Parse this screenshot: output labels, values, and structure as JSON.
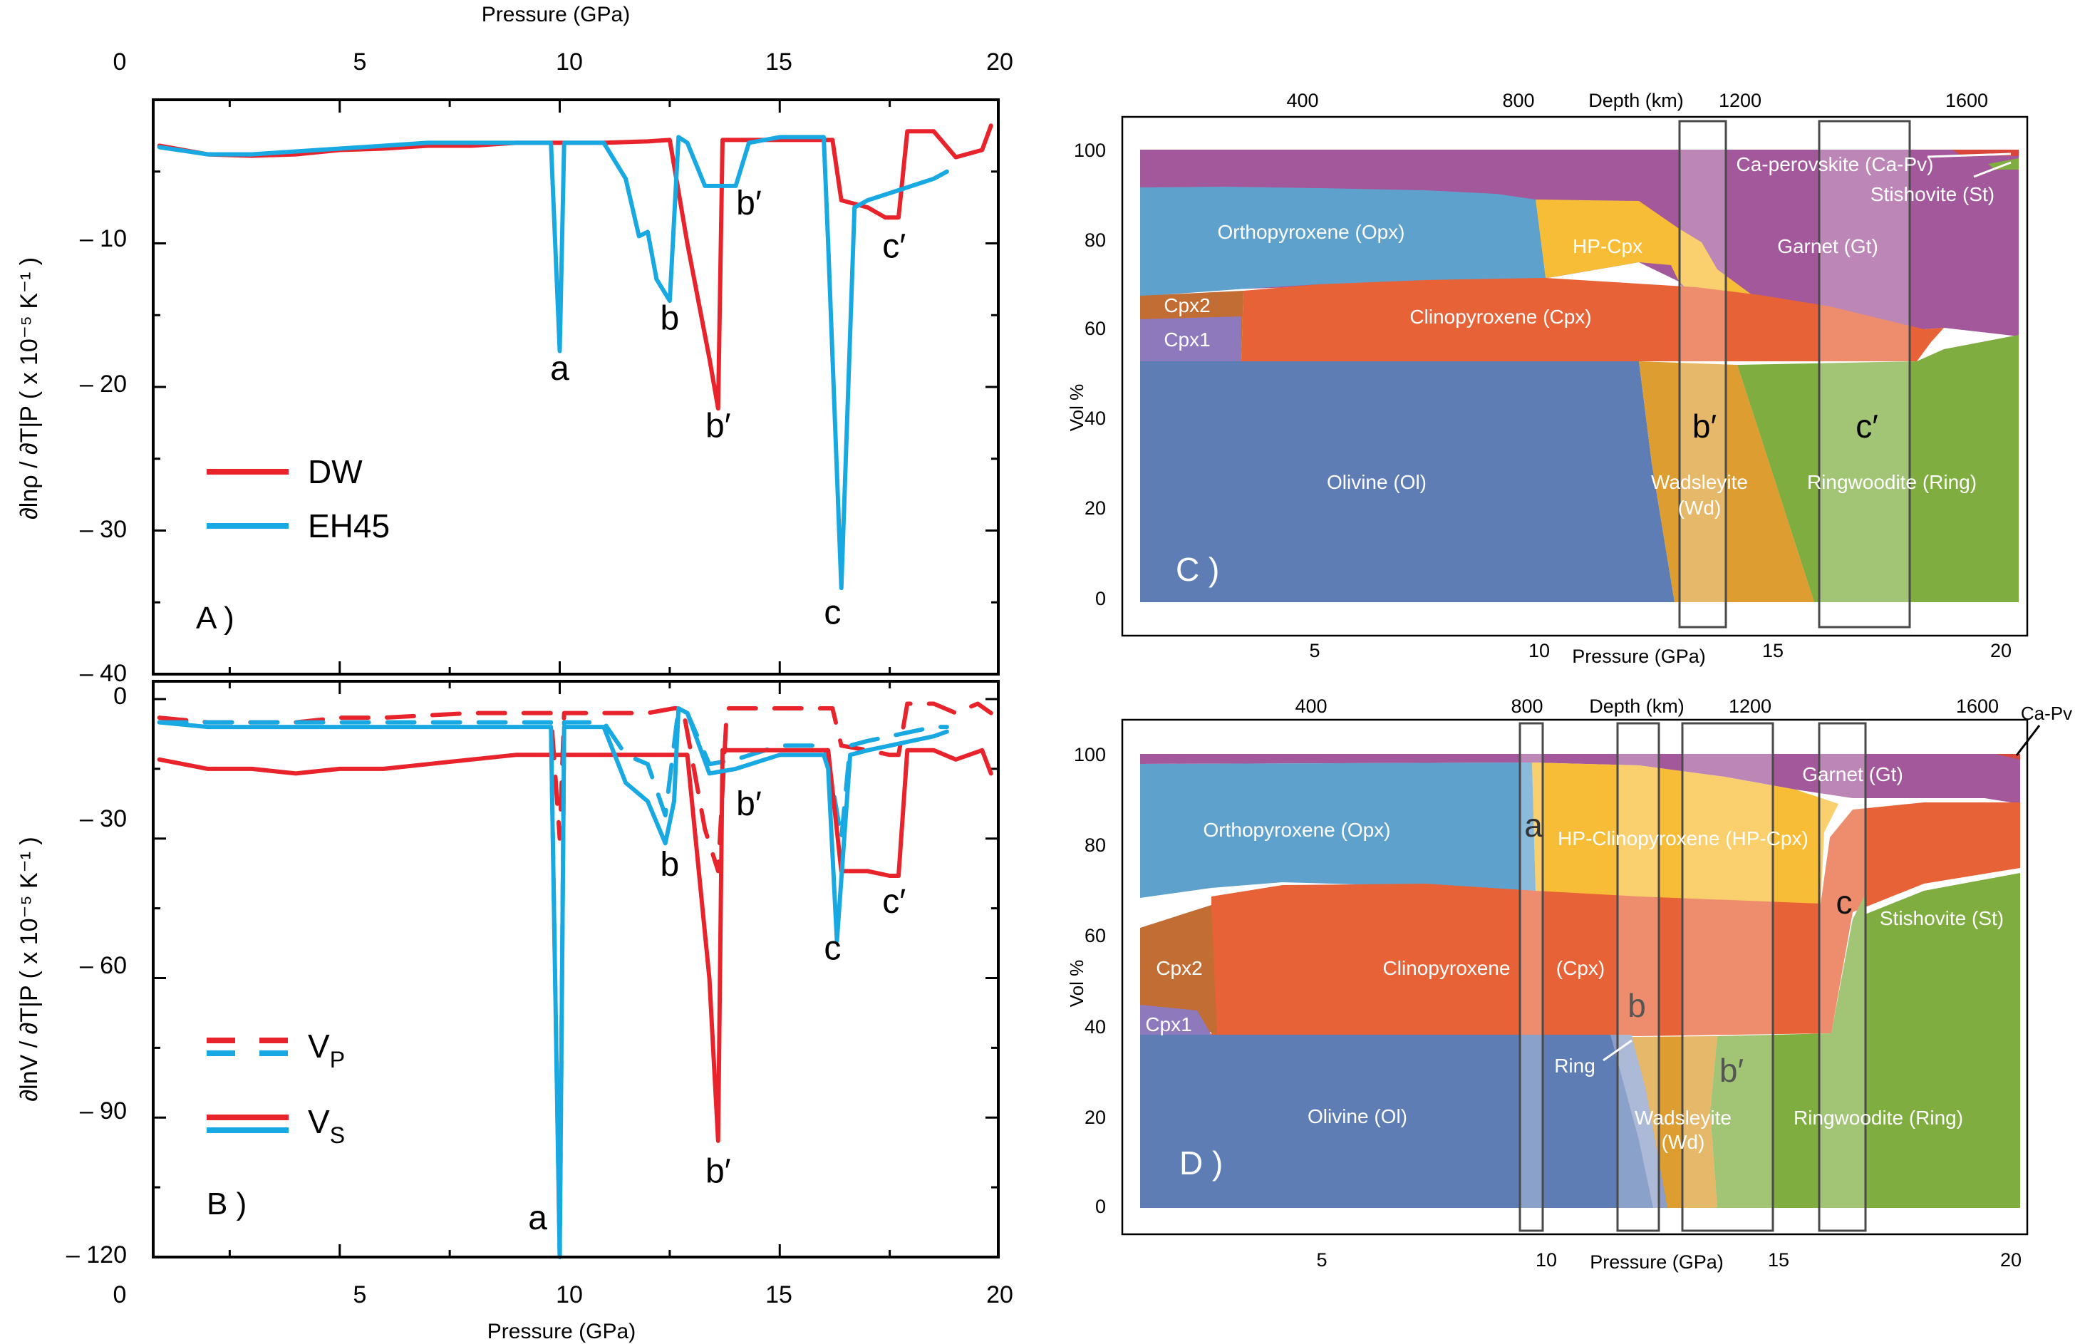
{
  "colors": {
    "dw": "#e8232b",
    "eh45": "#19a9e2",
    "olivine": "#5e7db5",
    "orthopyroxene": "#5fa1cd",
    "clinopyroxene": "#e86237",
    "garnet": "#a2589a",
    "hp_cpx": "#f8bd36",
    "wadsleyite": "#dd9d30",
    "ringwoodite": "#7fad40",
    "cpx1": "#8e79bd",
    "cpx2": "#c26d33",
    "ca_perovskite": "#d9463a"
  },
  "shared": {
    "pressure_label": "Pressure (GPa)",
    "depth_label": "Depth (km)",
    "vol_label": "Vol %"
  },
  "chart_data": [
    {
      "panel": "A )",
      "type": "line",
      "xlabel": "Pressure (GPa)",
      "ylabel": "∂lnρ / ∂T|P ( x 10⁻⁵ K⁻¹ )",
      "xlim": [
        0,
        20
      ],
      "ylim": [
        -40,
        0
      ],
      "xticks": [
        0,
        5,
        10,
        15,
        20
      ],
      "yticks": [
        -10,
        -20,
        -30,
        -40
      ],
      "legend": "center-left",
      "series": [
        {
          "name": "DW",
          "color": "#e8232b",
          "x": [
            0.9,
            2,
            3,
            4,
            5,
            6,
            7,
            8,
            9,
            10,
            11,
            12,
            12.5,
            12.9,
            13.4,
            13.6,
            13.7,
            14,
            15,
            15.9,
            16.2,
            16.4,
            17,
            17.4,
            17.7,
            17.9,
            18.5,
            19,
            19.6,
            19.8
          ],
          "y": [
            -3.2,
            -3.8,
            -3.9,
            -3.8,
            -3.5,
            -3.4,
            -3.2,
            -3.2,
            -3.0,
            -3.0,
            -3.0,
            -2.9,
            -2.8,
            -10,
            -18,
            -21.5,
            -2.8,
            -2.8,
            -2.8,
            -2.8,
            -2.8,
            -7,
            -7.5,
            -8.2,
            -8.2,
            -2.2,
            -2.2,
            -4,
            -3.5,
            -1.8
          ]
        },
        {
          "name": "EH45",
          "color": "#19a9e2",
          "x": [
            0.9,
            2,
            3,
            4,
            5,
            6,
            7,
            8,
            9,
            9.8,
            10.0,
            10.1,
            11,
            11.5,
            11.8,
            12.0,
            12.2,
            12.5,
            12.7,
            12.9,
            13.3,
            13.6,
            14.0,
            14.3,
            15.0,
            16.0,
            16.1,
            16.4,
            16.7,
            17.0,
            17.5,
            18.0,
            18.5,
            18.8
          ],
          "y": [
            -3.3,
            -3.8,
            -3.8,
            -3.6,
            -3.4,
            -3.2,
            -3.0,
            -3.0,
            -3.0,
            -3.0,
            -17.5,
            -3.0,
            -3.0,
            -5.5,
            -9.5,
            -9.2,
            -12.5,
            -14.0,
            -2.6,
            -3.0,
            -6.0,
            -6.0,
            -6.0,
            -3.0,
            -2.6,
            -2.6,
            -10,
            -34,
            -7.5,
            -7.0,
            -6.5,
            -6.0,
            -5.5,
            -5.0
          ]
        }
      ],
      "annotations": [
        {
          "text": "a",
          "x": 10.0,
          "y": -19.5
        },
        {
          "text": "b",
          "x": 12.5,
          "y": -16.0
        },
        {
          "text": "b′",
          "x": 13.6,
          "y": -23.5
        },
        {
          "text": "b′",
          "x": 14.3,
          "y": -8.0
        },
        {
          "text": "c",
          "x": 16.2,
          "y": -36.5
        },
        {
          "text": "c′",
          "x": 17.6,
          "y": -11.0
        }
      ]
    },
    {
      "panel": "B )",
      "type": "line",
      "xlabel": "Pressure (GPa)",
      "ylabel": "∂lnV / ∂T|P ( x 10⁻⁵ K⁻¹ )",
      "xlim": [
        0,
        20
      ],
      "ylim": [
        -120,
        0
      ],
      "xticks": [
        0,
        5,
        10,
        15,
        20
      ],
      "yticks": [
        0,
        -30,
        -60,
        -90,
        -120
      ],
      "legend": "bottom-left",
      "series": [
        {
          "name": "V_P",
          "line": "dashed",
          "color": "#e8232b",
          "x": [
            0.9,
            2,
            3,
            4,
            5,
            6,
            8,
            9.8,
            10.0,
            10.1,
            11,
            12,
            12.6,
            12.8,
            13.3,
            13.6,
            13.8,
            14,
            15,
            15.9,
            16.2,
            16.4,
            17.0,
            17.5,
            17.7,
            17.9,
            18.5,
            19,
            19.5,
            19.8
          ],
          "y": [
            -4,
            -5,
            -5,
            -5,
            -4,
            -4,
            -3,
            -3,
            -30,
            -3,
            -3,
            -3,
            -2,
            -2,
            -28,
            -37,
            -2,
            -2,
            -2,
            -2,
            -2,
            -10,
            -11,
            -12,
            -12,
            -1,
            -1,
            -3,
            -1,
            -3
          ]
        },
        {
          "name": "V_P",
          "line": "dashed",
          "color": "#19a9e2",
          "x": [
            0.9,
            2,
            3,
            4,
            5,
            6,
            8,
            9.8,
            10.0,
            10.1,
            11,
            11.5,
            12.0,
            12.4,
            12.7,
            12.9,
            13.4,
            14,
            15,
            16.0,
            16.1,
            16.4,
            16.6,
            17.0,
            17.5,
            18,
            18.5,
            18.8
          ],
          "y": [
            -5,
            -5,
            -5,
            -5,
            -5,
            -5,
            -5,
            -5,
            -120,
            -5,
            -5,
            -12,
            -14,
            -25,
            -2,
            -3,
            -14,
            -13,
            -10,
            -10,
            -13,
            -30,
            -10,
            -9,
            -8,
            -7,
            -6,
            -6
          ]
        },
        {
          "name": "V_S",
          "line": "solid",
          "color": "#e8232b",
          "x": [
            0.9,
            2,
            3,
            4,
            5,
            6,
            7,
            8,
            9,
            9.8,
            10.0,
            10.1,
            11,
            12,
            12.9,
            13.4,
            13.6,
            13.7,
            14,
            15,
            15.9,
            16.1,
            16.4,
            17.0,
            17.5,
            17.7,
            17.9,
            18.5,
            19,
            19.6,
            19.8
          ],
          "y": [
            -13,
            -15,
            -15,
            -16,
            -15,
            -15,
            -14,
            -13,
            -12,
            -12,
            -12,
            -12,
            -12,
            -12,
            -12,
            -60,
            -95,
            -11,
            -11,
            -11,
            -11,
            -11,
            -37,
            -37,
            -38,
            -38,
            -11,
            -11,
            -13,
            -11,
            -16
          ]
        },
        {
          "name": "V_S",
          "line": "solid",
          "color": "#19a9e2",
          "x": [
            0.9,
            2,
            3,
            4,
            5,
            6,
            8,
            9.8,
            10.0,
            10.1,
            11,
            11.5,
            12.0,
            12.4,
            12.6,
            12.7,
            12.9,
            13.4,
            14,
            15,
            16.0,
            16.1,
            16.3,
            16.6,
            17.0,
            17.5,
            18,
            18.5,
            18.8
          ],
          "y": [
            -5,
            -6,
            -6,
            -6,
            -6,
            -6,
            -6,
            -6,
            -120,
            -6,
            -6,
            -18,
            -22,
            -31,
            -22,
            -2,
            -3,
            -16,
            -15,
            -12,
            -12,
            -15,
            -52,
            -12,
            -11,
            -10,
            -9,
            -8,
            -7
          ]
        }
      ],
      "annotations": [
        {
          "text": "a",
          "x": 9.5,
          "y": -114
        },
        {
          "text": "b",
          "x": 12.5,
          "y": -38
        },
        {
          "text": "b′",
          "x": 13.6,
          "y": -104
        },
        {
          "text": "b′",
          "x": 14.3,
          "y": -25
        },
        {
          "text": "c",
          "x": 16.2,
          "y": -56
        },
        {
          "text": "c′",
          "x": 17.6,
          "y": -46
        }
      ]
    },
    {
      "panel": "C )",
      "type": "area",
      "xlabel": "Pressure (GPa)",
      "ylabel": "Vol %",
      "top_axis_label": "Depth (km)",
      "xlim": [
        0.5,
        21
      ],
      "ylim": [
        0,
        100
      ],
      "xticks": [
        5,
        10,
        15,
        20
      ],
      "yticks": [
        0,
        20,
        40,
        60,
        80,
        100
      ],
      "depth_ticks": [
        400,
        800,
        1200,
        1600
      ],
      "phases": [
        "Olivine (Ol)",
        "Wadsleyite (Wd)",
        "Ringwoodite (Ring)",
        "Cpx1",
        "Cpx2",
        "Clinopyroxene (Cpx)",
        "Orthopyroxene (Opx)",
        "HP-Cpx",
        "Garnet (Gt)",
        "Ca-perovskite (Ca-Pv)",
        "Stishovite (St)"
      ],
      "regions": [
        {
          "label": "b′",
          "pressure_range": [
            12.9,
            13.9
          ]
        },
        {
          "label": "c′",
          "pressure_range": [
            15.9,
            17.9
          ]
        }
      ]
    },
    {
      "panel": "D )",
      "type": "area",
      "xlabel": "Pressure (GPa)",
      "ylabel": "Vol %",
      "top_axis_label": "Depth (km)",
      "xlim": [
        0.5,
        21
      ],
      "ylim": [
        0,
        100
      ],
      "xticks": [
        5,
        10,
        15,
        20
      ],
      "yticks": [
        0,
        20,
        40,
        60,
        80,
        100
      ],
      "depth_ticks": [
        400,
        800,
        1200,
        1600
      ],
      "phases": [
        "Olivine (Ol)",
        "Ring",
        "Wadsleyite (Wd)",
        "Ringwoodite (Ring)",
        "Cpx1",
        "Cpx2",
        "Clinopyroxene",
        "(Cpx)",
        "Orthopyroxene (Opx)",
        "HP-Clinopyroxene (HP-Cpx)",
        "Garnet (Gt)",
        "Stishovite (St)",
        "Ca-Pv"
      ],
      "regions": [
        {
          "label": "a",
          "pressure_range": [
            9.4,
            9.9
          ]
        },
        {
          "label": "b",
          "pressure_range": [
            11.6,
            12.5
          ]
        },
        {
          "label": "b′",
          "pressure_range": [
            12.9,
            14.9
          ]
        },
        {
          "label": "c",
          "pressure_range": [
            15.9,
            16.9
          ]
        }
      ]
    }
  ]
}
